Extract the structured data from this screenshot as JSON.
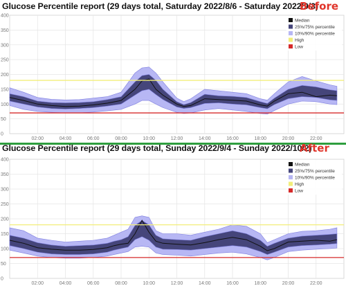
{
  "colors": {
    "before_tag": "#e0342a",
    "after_tag": "#e0342a",
    "band_10_90": "#b7b7f4",
    "band_25_75": "#45457a",
    "median": "#111111",
    "high": "#f2ee7a",
    "low": "#d62a2a",
    "divider": "#2e9e3e"
  },
  "chart_data": [
    {
      "type": "area",
      "title": "Glucose Percentile report (29 days total, Saturday 2022/8/6 - Saturday 2022/9/3)",
      "tag": "Before",
      "xlabel": "",
      "ylabel": "",
      "x_ticks": [
        "02:00",
        "04:00",
        "06:00",
        "08:00",
        "10:00",
        "12:00",
        "14:00",
        "16:00",
        "18:00",
        "20:00",
        "22:00"
      ],
      "y_ticks": [
        "0",
        "50",
        "100",
        "150",
        "200",
        "250",
        "300",
        "350",
        "400"
      ],
      "xlim": [
        0,
        24
      ],
      "ylim": [
        0,
        400
      ],
      "grid": true,
      "legend_position": "top-right",
      "legend": [
        "Median",
        "25%/75% percentile",
        "10%/90% percentile",
        "High",
        "Low"
      ],
      "high": 180,
      "low": 70,
      "x": [
        0,
        1,
        2,
        3,
        4,
        5,
        6,
        7,
        8,
        9,
        9.5,
        10,
        10.5,
        11,
        12,
        12.5,
        13,
        14,
        15,
        16,
        17,
        18,
        18.5,
        19,
        20,
        21,
        22,
        23,
        23.5
      ],
      "series": [
        {
          "name": "10%/90% percentile",
          "upper": [
            155,
            140,
            122,
            116,
            114,
            115,
            120,
            125,
            140,
            205,
            222,
            225,
            205,
            175,
            120,
            108,
            118,
            150,
            145,
            140,
            135,
            118,
            113,
            135,
            175,
            193,
            178,
            165,
            160
          ],
          "lower": [
            95,
            82,
            75,
            72,
            70,
            70,
            73,
            77,
            82,
            100,
            112,
            112,
            100,
            88,
            72,
            68,
            70,
            80,
            85,
            80,
            75,
            68,
            66,
            78,
            100,
            110,
            108,
            100,
            98
          ]
        },
        {
          "name": "25%/75% percentile",
          "upper": [
            135,
            125,
            110,
            105,
            104,
            105,
            108,
            115,
            125,
            175,
            196,
            200,
            180,
            150,
            108,
            98,
            105,
            133,
            128,
            126,
            122,
            108,
            102,
            120,
            150,
            163,
            158,
            148,
            145
          ],
          "lower": [
            110,
            100,
            90,
            85,
            83,
            85,
            88,
            93,
            100,
            130,
            145,
            150,
            132,
            115,
            90,
            85,
            88,
            102,
            104,
            100,
            97,
            88,
            84,
            98,
            118,
            125,
            122,
            114,
            112
          ]
        },
        {
          "name": "Median",
          "values": [
            122,
            112,
            100,
            95,
            92,
            93,
            97,
            103,
            112,
            150,
            178,
            185,
            150,
            130,
            100,
            92,
            95,
            118,
            115,
            113,
            110,
            97,
            93,
            110,
            135,
            140,
            125,
            130,
            128
          ]
        }
      ]
    },
    {
      "type": "area",
      "title": "Glucose Percentile report (29 days total, Sunday 2022/9/4 - Sunday 2022/10/2)",
      "tag": "After",
      "xlabel": "",
      "ylabel": "",
      "x_ticks": [
        "02:00",
        "04:00",
        "06:00",
        "08:00",
        "10:00",
        "12:00",
        "14:00",
        "16:00",
        "18:00",
        "20:00",
        "22:00"
      ],
      "y_ticks": [
        "0",
        "50",
        "100",
        "150",
        "200",
        "250",
        "300",
        "350",
        "400"
      ],
      "xlim": [
        0,
        24
      ],
      "ylim": [
        0,
        400
      ],
      "grid": true,
      "legend_position": "top-right",
      "legend": [
        "Median",
        "25%/75% percentile",
        "10%/90% percentile",
        "High",
        "Low"
      ],
      "high": 180,
      "low": 70,
      "x": [
        0,
        1,
        2,
        3,
        4,
        5,
        6,
        7,
        7.5,
        8,
        8.5,
        9,
        9.5,
        10,
        10.5,
        11,
        12,
        13,
        14,
        15,
        16,
        17,
        18,
        18.5,
        19,
        20,
        21,
        22,
        23,
        23.5
      ],
      "series": [
        {
          "name": "10%/90% percentile",
          "upper": [
            170,
            160,
            135,
            128,
            122,
            125,
            128,
            135,
            145,
            155,
            165,
            205,
            210,
            205,
            160,
            150,
            150,
            145,
            155,
            165,
            180,
            175,
            150,
            120,
            130,
            150,
            158,
            160,
            165,
            170
          ],
          "lower": [
            95,
            85,
            75,
            70,
            68,
            68,
            70,
            75,
            80,
            85,
            90,
            105,
            108,
            105,
            85,
            80,
            78,
            75,
            80,
            85,
            88,
            82,
            70,
            62,
            70,
            90,
            95,
            98,
            100,
            102
          ]
        },
        {
          "name": "25%/75% percentile",
          "upper": [
            145,
            135,
            120,
            112,
            108,
            110,
            112,
            118,
            125,
            130,
            140,
            178,
            195,
            180,
            145,
            133,
            130,
            128,
            140,
            150,
            160,
            150,
            128,
            108,
            118,
            135,
            142,
            145,
            148,
            150
          ],
          "lower": [
            110,
            100,
            88,
            82,
            80,
            80,
            82,
            88,
            95,
            100,
            105,
            130,
            140,
            128,
            105,
            98,
            97,
            95,
            100,
            105,
            110,
            105,
            90,
            80,
            88,
            105,
            110,
            112,
            115,
            117
          ]
        },
        {
          "name": "Median",
          "values": [
            128,
            118,
            103,
            98,
            95,
            95,
            97,
            103,
            110,
            115,
            118,
            150,
            195,
            155,
            125,
            118,
            115,
            112,
            120,
            130,
            138,
            130,
            108,
            93,
            100,
            122,
            125,
            128,
            125,
            130
          ]
        }
      ]
    }
  ]
}
